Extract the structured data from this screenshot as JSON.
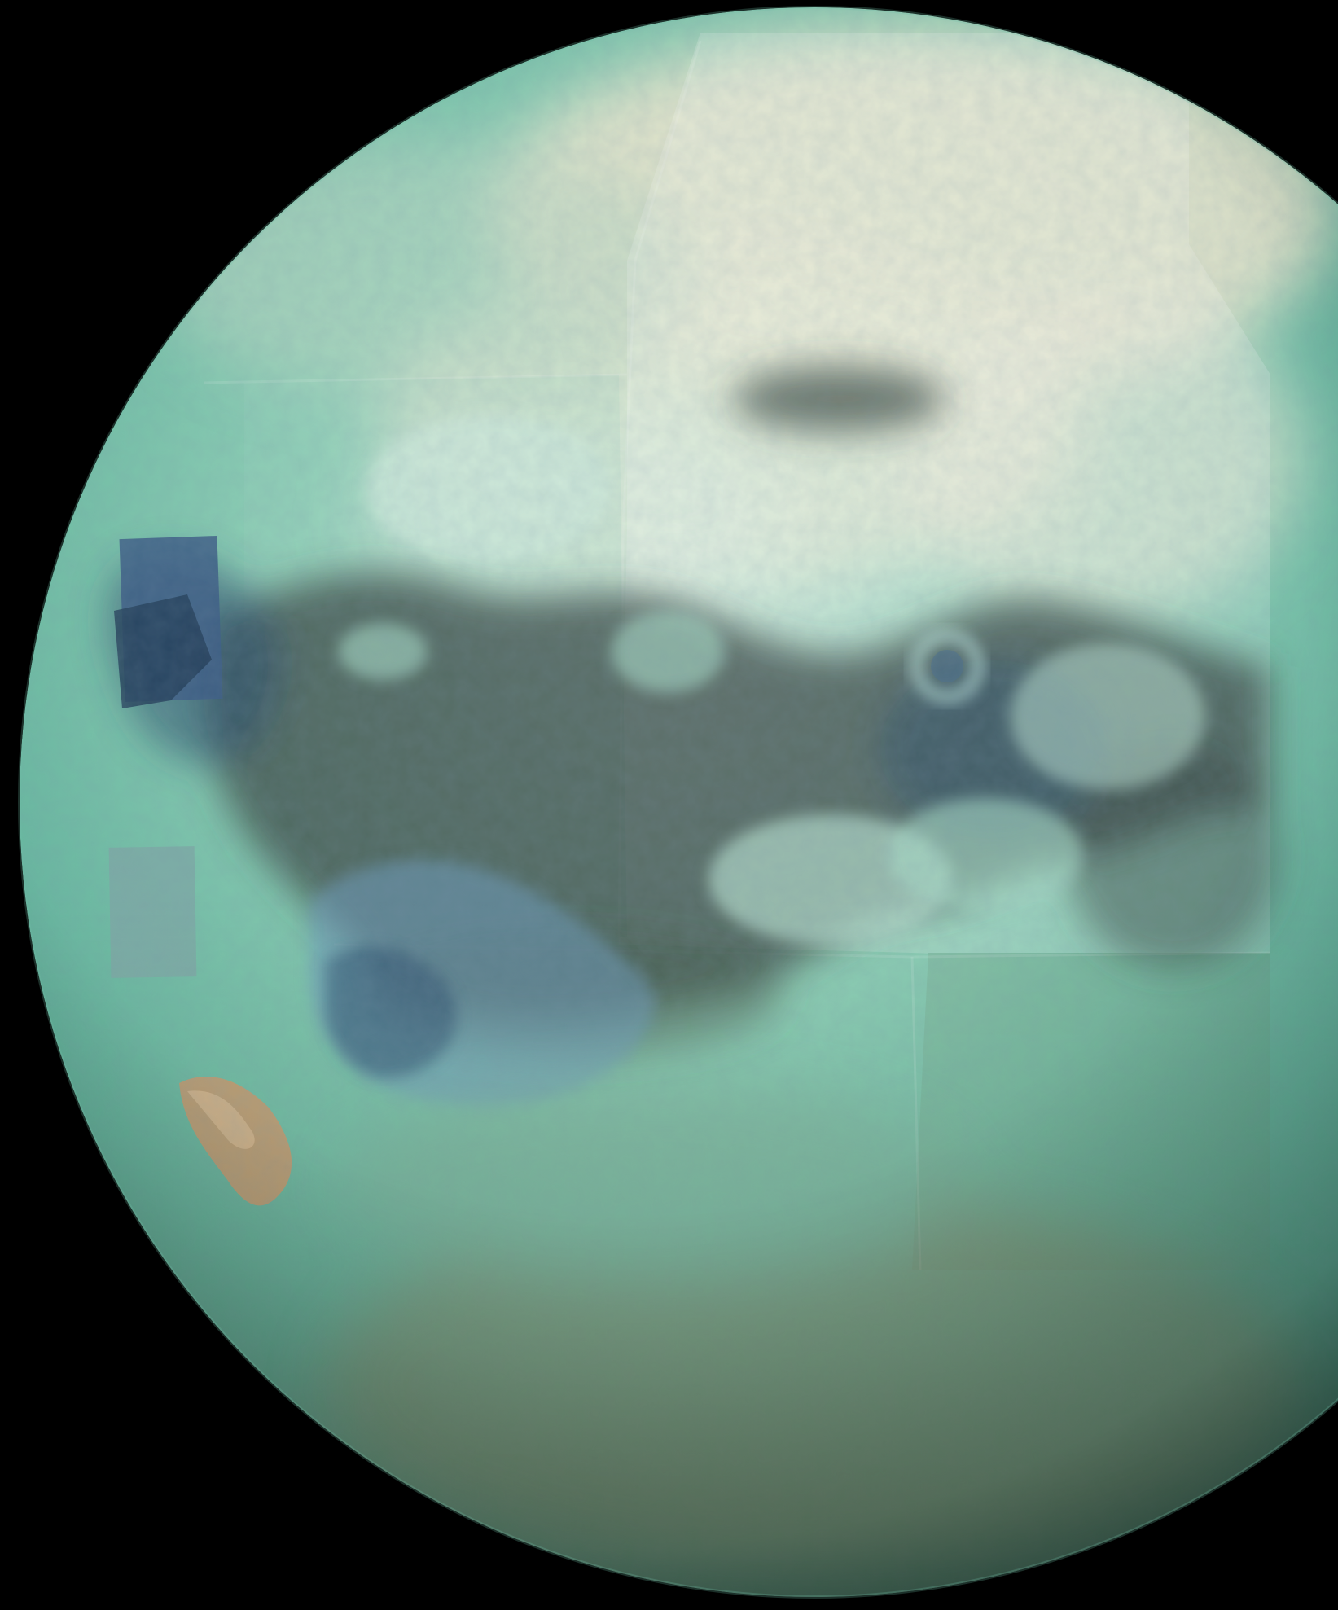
{
  "image": {
    "subject": "moon-globe",
    "background_color": "#000000",
    "palette": {
      "teal_light": "#a9dcc6",
      "teal_mid": "#6fbfa6",
      "teal_deep": "#3f8c7c",
      "cream_haze": "#efe7cf",
      "dark_blue": "#2e4f70",
      "dark_brown": "#3c4a45",
      "ochre": "#c49a6e",
      "limb_shadow": "#0e2a27"
    }
  }
}
